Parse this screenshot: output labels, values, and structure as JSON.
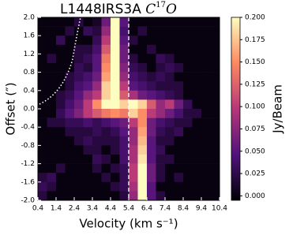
{
  "chart_data": {
    "type": "heatmap",
    "title": "L1448IRS3A",
    "molecule": {
      "base": "C",
      "sup": "17",
      "end": "O"
    },
    "x_label": "Velocity (km s⁻¹)",
    "y_label": "Offset (″)",
    "colorbar_label": "Jy/Beam",
    "colormap": "magma",
    "xlim": [
      0.4,
      10.4
    ],
    "ylim": [
      -2,
      2
    ],
    "clim": [
      -0.005,
      0.2
    ],
    "xticks": [
      0.4,
      1.4,
      2.4,
      3.4,
      4.4,
      5.4,
      6.4,
      7.4,
      8.4,
      9.4,
      10.4
    ],
    "yticks": [
      {
        "value": -2,
        "label": "-2.0"
      },
      -1.6,
      -1.2,
      -0.8,
      -0.4,
      {
        "value": 0,
        "label": "0.0"
      },
      0.4,
      0.8,
      1.2,
      1.6,
      {
        "value": 2,
        "label": "2.0"
      }
    ],
    "cticks": [
      {
        "value": 0,
        "label": "0.000"
      },
      {
        "value": 0.025,
        "label": "0.025"
      },
      {
        "value": 0.05,
        "label": "0.050"
      },
      {
        "value": 0.075,
        "label": "0.075"
      },
      {
        "value": 0.1,
        "label": "0.100"
      },
      {
        "value": 0.125,
        "label": "0.125"
      },
      {
        "value": 0.15,
        "label": "0.150"
      },
      {
        "value": 0.175,
        "label": "0.175"
      },
      {
        "value": 0.2,
        "label": "0.200"
      }
    ],
    "vline": 5.4,
    "z": [
      [
        0,
        0,
        0,
        0,
        0.02,
        0,
        0.01,
        0.06,
        0.2,
        0.05,
        0,
        0,
        0,
        0,
        0,
        0,
        0,
        0,
        0,
        0
      ],
      [
        0,
        0,
        0,
        0.02,
        0,
        0.03,
        0.02,
        0.08,
        0.2,
        0.04,
        0,
        0.02,
        0,
        0,
        0,
        0,
        0,
        0,
        0,
        0
      ],
      [
        0,
        0,
        0.03,
        0,
        0,
        0,
        0.03,
        0.1,
        0.2,
        0.05,
        0.02,
        0,
        0,
        0,
        0,
        0,
        0,
        0,
        0,
        0
      ],
      [
        0,
        0,
        0,
        0,
        0.02,
        0.02,
        0.04,
        0.12,
        0.2,
        0.06,
        0,
        0,
        0.02,
        0,
        0,
        0,
        0,
        0,
        0,
        0
      ],
      [
        0,
        0.02,
        0,
        0,
        0.02,
        0.03,
        0.05,
        0.14,
        0.2,
        0.06,
        0.02,
        0,
        0,
        0.03,
        0.02,
        0,
        0,
        0,
        0,
        0
      ],
      [
        0,
        0,
        0,
        0,
        0.03,
        0.02,
        0.05,
        0.15,
        0.2,
        0.07,
        0.03,
        0.02,
        0,
        0.02,
        0.03,
        0.02,
        0,
        0,
        0,
        0
      ],
      [
        0,
        0,
        0,
        0.02,
        0.03,
        0.04,
        0.06,
        0.16,
        0.2,
        0.08,
        0.04,
        0.03,
        0.02,
        0.03,
        0.02,
        0,
        0,
        0,
        0,
        0
      ],
      [
        0,
        0,
        0,
        0.02,
        0.04,
        0.05,
        0.08,
        0.18,
        0.2,
        0.1,
        0.05,
        0.04,
        0.03,
        0.02,
        0.02,
        0.02,
        0,
        0,
        0,
        0
      ],
      [
        0,
        0,
        0.02,
        0.03,
        0.05,
        0.08,
        0.1,
        0.18,
        0.2,
        0.12,
        0.09,
        0.06,
        0.05,
        0.04,
        0.03,
        0.02,
        0,
        0,
        0,
        0
      ],
      [
        0,
        0,
        0.02,
        0.04,
        0.06,
        0.1,
        0.15,
        0.2,
        0.2,
        0.18,
        0.2,
        0.18,
        0.12,
        0.08,
        0.1,
        0.06,
        0.03,
        0,
        0,
        0
      ],
      [
        0,
        0,
        0.03,
        0.05,
        0.07,
        0.1,
        0.12,
        0.14,
        0.15,
        0.14,
        0.18,
        0.15,
        0.1,
        0.08,
        0.06,
        0.04,
        0.02,
        0.02,
        0,
        0
      ],
      [
        0,
        0.02,
        0.02,
        0.03,
        0.03,
        0.04,
        0.03,
        0.04,
        0.05,
        0.06,
        0.1,
        0.15,
        0.06,
        0.04,
        0.03,
        0.02,
        0.02,
        0,
        0,
        0
      ],
      [
        0,
        0,
        0,
        0.02,
        0.02,
        0.02,
        0.03,
        0.02,
        0.03,
        0.05,
        0.08,
        0.16,
        0.06,
        0.03,
        0.02,
        0.03,
        0,
        0,
        0,
        0
      ],
      [
        0,
        0,
        0,
        0,
        0.02,
        0.03,
        0.02,
        0.02,
        0.02,
        0.04,
        0.08,
        0.17,
        0.05,
        0.02,
        0.02,
        0,
        0,
        0,
        0,
        0
      ],
      [
        0,
        0,
        0,
        0,
        0,
        0.02,
        0.02,
        0,
        0.02,
        0.04,
        0.09,
        0.18,
        0.05,
        0.03,
        0,
        0,
        0,
        0,
        0,
        0
      ],
      [
        0,
        0,
        0,
        0,
        0,
        0,
        0.03,
        0.02,
        0,
        0.04,
        0.09,
        0.19,
        0.05,
        0.02,
        0.02,
        0,
        0,
        0,
        0,
        0
      ],
      [
        0,
        0,
        0.02,
        0,
        0,
        0,
        0.02,
        0,
        0.02,
        0.03,
        0.1,
        0.2,
        0.06,
        0.02,
        0,
        0,
        0,
        0,
        0,
        0
      ],
      [
        0.02,
        0.03,
        0,
        0,
        0,
        0,
        0,
        0.02,
        0,
        0.03,
        0.1,
        0.2,
        0.06,
        0.02,
        0,
        0.02,
        0,
        0,
        0,
        0
      ],
      [
        0.03,
        0.02,
        0,
        0,
        0,
        0,
        0,
        0,
        0.02,
        0.03,
        0.09,
        0.2,
        0.05,
        0,
        0,
        0,
        0,
        0,
        0,
        0
      ],
      [
        0.02,
        0,
        0,
        0,
        0,
        0,
        0,
        0,
        0,
        0.02,
        0.08,
        0.2,
        0.05,
        0.02,
        0,
        0,
        0,
        0,
        0,
        0
      ]
    ]
  }
}
